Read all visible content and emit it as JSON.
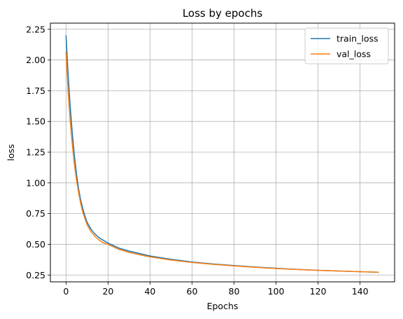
{
  "chart_data": {
    "type": "line",
    "title": "Loss by epochs",
    "xlabel": "Epochs",
    "ylabel": "loss",
    "xlim": [
      -7.45,
      156.45
    ],
    "ylim": [
      0.1945,
      2.3
    ],
    "xticks": [
      0,
      20,
      40,
      60,
      80,
      100,
      120,
      140
    ],
    "xtick_labels": [
      "0",
      "20",
      "40",
      "60",
      "80",
      "100",
      "120",
      "140"
    ],
    "yticks": [
      0.25,
      0.5,
      0.75,
      1.0,
      1.25,
      1.5,
      1.75,
      2.0,
      2.25
    ],
    "ytick_labels": [
      "0.25",
      "0.50",
      "0.75",
      "1.00",
      "1.25",
      "1.50",
      "1.75",
      "2.00",
      "2.25"
    ],
    "grid": true,
    "legend_position": "top-right",
    "series": [
      {
        "name": "train_loss",
        "color": "#1f77b4",
        "x": [
          0,
          1,
          2,
          3,
          4,
          5,
          6,
          7,
          8,
          9,
          10,
          12,
          14,
          16,
          18,
          20,
          25,
          30,
          35,
          40,
          50,
          60,
          70,
          80,
          90,
          100,
          110,
          120,
          130,
          140,
          149
        ],
        "y": [
          2.2,
          1.88,
          1.62,
          1.4,
          1.22,
          1.07,
          0.95,
          0.86,
          0.79,
          0.73,
          0.68,
          0.62,
          0.58,
          0.55,
          0.53,
          0.51,
          0.47,
          0.445,
          0.425,
          0.405,
          0.378,
          0.356,
          0.34,
          0.327,
          0.315,
          0.305,
          0.296,
          0.289,
          0.283,
          0.277,
          0.272
        ]
      },
      {
        "name": "val_loss",
        "color": "#ff7f0e",
        "x": [
          0,
          1,
          2,
          3,
          4,
          5,
          6,
          7,
          8,
          9,
          10,
          12,
          14,
          16,
          18,
          20,
          25,
          30,
          35,
          40,
          50,
          60,
          70,
          80,
          90,
          100,
          110,
          120,
          130,
          140,
          149
        ],
        "y": [
          2.07,
          1.74,
          1.5,
          1.31,
          1.15,
          1.02,
          0.92,
          0.83,
          0.76,
          0.71,
          0.66,
          0.6,
          0.56,
          0.53,
          0.51,
          0.5,
          0.46,
          0.435,
          0.415,
          0.398,
          0.372,
          0.352,
          0.337,
          0.324,
          0.313,
          0.303,
          0.295,
          0.288,
          0.282,
          0.277,
          0.273
        ]
      }
    ]
  }
}
